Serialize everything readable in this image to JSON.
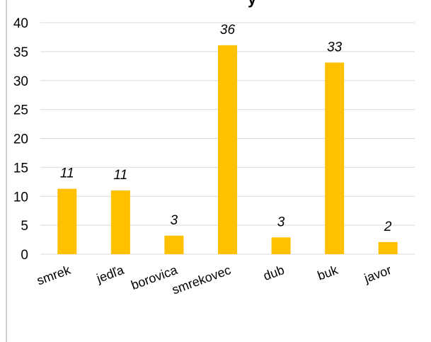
{
  "chart_data": {
    "type": "bar",
    "title": "",
    "categories": [
      "smrek",
      "jedľa",
      "borovica",
      "smrekovec",
      "dub",
      "buk",
      "javor"
    ],
    "values": [
      11.3,
      11.0,
      3.2,
      36.1,
      2.9,
      33.1,
      2.1
    ],
    "data_labels": [
      "11",
      "11",
      "3",
      "36",
      "3",
      "33",
      "2"
    ],
    "y_ticks": [
      "0",
      "5",
      "10",
      "15",
      "20",
      "25",
      "30",
      "35",
      "40"
    ],
    "xlabel": "",
    "ylabel": "",
    "ylim": [
      0,
      40
    ],
    "grid": true,
    "legend": "none",
    "bar_color": "#FFC000",
    "grid_color": "#d9d9d9"
  }
}
